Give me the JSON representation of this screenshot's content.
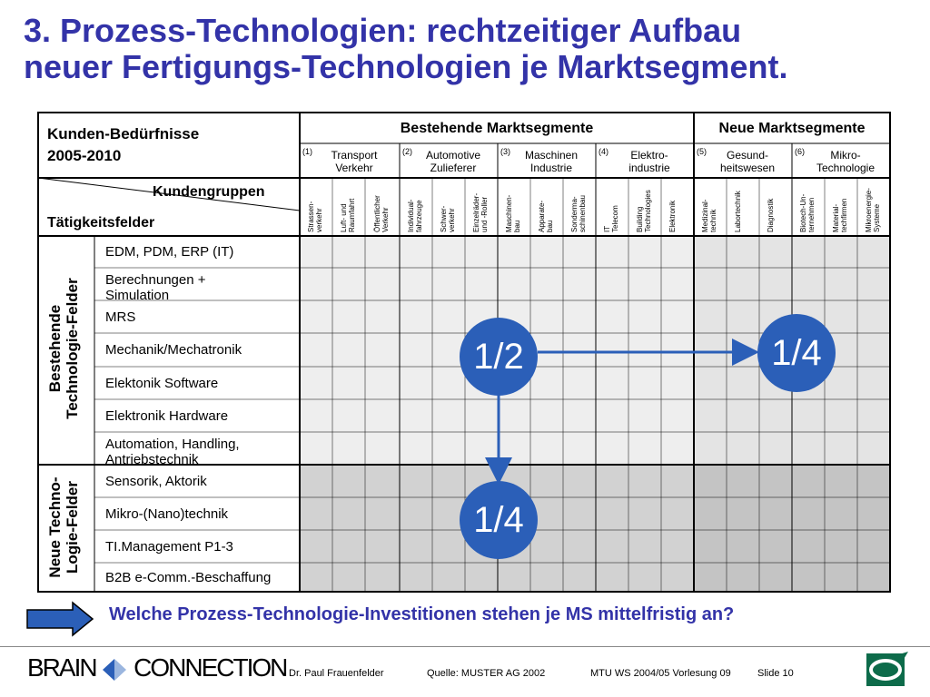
{
  "title": {
    "line1": "3. Prozess-Technologien: rechtzeitiger Aufbau",
    "line2": "neuer Fertigungs-Technologien je Marktsegment."
  },
  "table": {
    "corner_title_line1": "Kunden-Bedürfnisse",
    "corner_title_line2": "2005-2010",
    "kundengruppen_label": "Kundengruppen",
    "taetigkeitsfelder_label": "Tätigkeitsfelder",
    "existing_segments_header": "Bestehende Marktsegmente",
    "new_segments_header": "Neue Marktsegmente",
    "segments": [
      {
        "num": "(1)",
        "label": "Transport\nVerkehr"
      },
      {
        "num": "(2)",
        "label": "Automotive\nZulieferer"
      },
      {
        "num": "(3)",
        "label": "Maschinen\nIndustrie"
      },
      {
        "num": "(4)",
        "label": "Elektro-\nindustrie"
      },
      {
        "num": "(5)",
        "label": "Gesund-\nheitswesen"
      },
      {
        "num": "(6)",
        "label": "Mikro-\nTechnologie"
      }
    ],
    "columns": [
      "Strassen-\nverkehr",
      "Luft- und\nRaumfahrt",
      "Öffentlicher\nVerkehr",
      "Individual-\nfahrzeuge",
      "Schwer-\nverkehr",
      "Einzelräder-\nund -Roller",
      "Maschinen-\nbau",
      "Apparate-\nbau",
      "Sonderma-\nschinenbau",
      "IT\nTelecom",
      "Building\nTechnologies",
      "Elektronik",
      "Medizinal-\ntechnik",
      "Labortechnik",
      "Diagnostik",
      "Biotech-Un-\nternehmen",
      "Material-\ntechfirmen",
      "Mikroenergie-\nSysteme"
    ],
    "group_existing_label": "Bestehende\nTechnologie-Felder",
    "group_new_label": "Neue Techno-\nLogie-Felder",
    "rows": [
      "EDM, PDM, ERP (IT)",
      "Berechnungen +\nSimulation",
      "MRS",
      "Mechanik/Mechatronik",
      "Elektonik Software",
      "Elektronik Hardware",
      "Automation, Handling,\nAntriebstechnik",
      "Sensorik, Aktorik",
      "Mikro-(Nano)technik",
      "TI.Management P1-3",
      "B2B e-Comm.-Beschaffung"
    ]
  },
  "markers": {
    "center": "1/2",
    "right": "1/4",
    "bottom": "1/4"
  },
  "question": "Welche Prozess-Technologie-Investitionen stehen je MS mittelfristig an?",
  "footer": {
    "logo_left": "BRAIN",
    "logo_right": "CONNECTION",
    "author": "Dr. Paul Frauenfelder",
    "source": "Quelle: MUSTER AG 2002",
    "course": "MTU WS 2004/05 Vorlesung 09",
    "slide": "Slide 10"
  },
  "colors": {
    "title": "#3333a8",
    "circle": "#2b5fb8",
    "arrow": "#2b5fb8",
    "cell_light": "#eeeeee",
    "cell_dark": "#c8c8c8"
  }
}
